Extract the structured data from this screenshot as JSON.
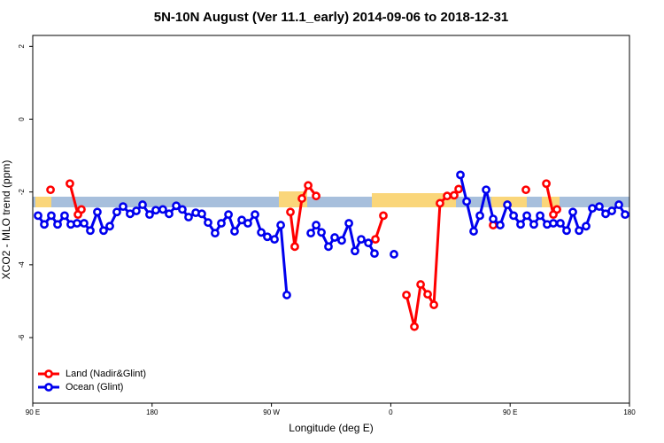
{
  "chart_data": {
    "type": "line",
    "title": "5N-10N August (Ver 11.1_early)   2014-09-06 to 2018-12-31",
    "x_label": "Longitude (deg E)",
    "y_label": "XCO2 - MLO trend (ppm)",
    "xlim": [
      90,
      540
    ],
    "xticks": [
      {
        "value": 90,
        "label": "90 E"
      },
      180,
      {
        "value": 270,
        "label": "90 W"
      },
      {
        "value": 360,
        "label": "0"
      },
      {
        "value": 450,
        "label": "90 E"
      },
      {
        "value": 540,
        "label": "180"
      }
    ],
    "ylim": [
      -7.8,
      2.3
    ],
    "yticks": [
      2,
      0,
      -2,
      -4,
      -6
    ],
    "legend": "bottom-left",
    "series": [
      {
        "name": "Land (Nadir&Glint)",
        "color": "#ff0000",
        "x": [
          103.4,
          null,
          118.0,
          124.1,
          126.7,
          null,
          284.3,
          287.6,
          293.0,
          297.7,
          303.7,
          null,
          348.4,
          354.4,
          null,
          371.8,
          377.8,
          382.5,
          387.8,
          392.5,
          397.1,
          402.5,
          407.8,
          411.2,
          null,
          437.2,
          null,
          461.9,
          null,
          477.3,
          482.6,
          485.3
        ],
        "values": [
          -1.94,
          null,
          -1.77,
          -2.62,
          -2.48,
          null,
          -2.55,
          -3.5,
          -2.18,
          -1.82,
          -2.11,
          null,
          -3.3,
          -2.65,
          null,
          -4.83,
          -5.7,
          -4.54,
          -4.81,
          -5.1,
          -2.31,
          -2.11,
          -2.09,
          -1.92,
          null,
          -2.91,
          null,
          -1.94,
          null,
          -1.77,
          -2.62,
          -2.48
        ]
      },
      {
        "name": "Ocean (Glint)",
        "color": "#0000ee",
        "x": [
          94.0,
          98.7,
          104.0,
          108.7,
          114.0,
          118.7,
          123.4,
          128.7,
          133.4,
          138.7,
          143.4,
          148.1,
          153.4,
          158.1,
          163.4,
          168.1,
          172.8,
          178.1,
          182.8,
          188.1,
          192.8,
          198.2,
          202.8,
          207.5,
          212.9,
          217.5,
          222.2,
          227.5,
          232.2,
          237.6,
          242.2,
          247.6,
          252.2,
          257.6,
          262.3,
          266.9,
          272.3,
          277.0,
          281.6,
          null,
          299.7,
          303.7,
          307.7,
          313.0,
          317.7,
          323.0,
          328.4,
          333.0,
          337.7,
          343.1,
          347.7,
          null,
          362.4,
          null,
          412.5,
          417.2,
          422.5,
          427.2,
          431.9,
          437.2,
          442.5,
          447.9,
          452.6,
          457.9,
          462.6,
          467.9,
          472.6,
          477.9,
          482.6,
          487.9,
          492.6,
          497.3,
          502.0,
          507.3,
          512.0,
          517.3,
          522.0,
          526.7,
          532.0,
          536.7
        ],
        "values": [
          -2.65,
          -2.89,
          -2.65,
          -2.89,
          -2.65,
          -2.89,
          -2.86,
          -2.86,
          -3.06,
          -2.55,
          -3.06,
          -2.94,
          -2.55,
          -2.4,
          -2.6,
          -2.52,
          -2.35,
          -2.62,
          -2.5,
          -2.48,
          -2.6,
          -2.38,
          -2.48,
          -2.69,
          -2.57,
          -2.6,
          -2.84,
          -3.13,
          -2.86,
          -2.62,
          -3.08,
          -2.77,
          -2.86,
          -2.62,
          -3.11,
          -3.23,
          -3.3,
          -2.91,
          -4.83,
          null,
          -3.13,
          -2.91,
          -3.11,
          -3.5,
          -3.25,
          -3.33,
          -2.86,
          -3.62,
          -3.3,
          -3.4,
          -3.69,
          null,
          -3.71,
          null,
          -1.53,
          -2.26,
          -3.08,
          -2.65,
          -1.94,
          -2.74,
          -2.91,
          -2.35,
          -2.65,
          -2.89,
          -2.65,
          -2.89,
          -2.65,
          -2.89,
          -2.86,
          -2.86,
          -3.06,
          -2.55,
          -3.06,
          -2.94,
          -2.45,
          -2.4,
          -2.6,
          -2.52,
          -2.35,
          -2.62
        ]
      }
    ]
  }
}
